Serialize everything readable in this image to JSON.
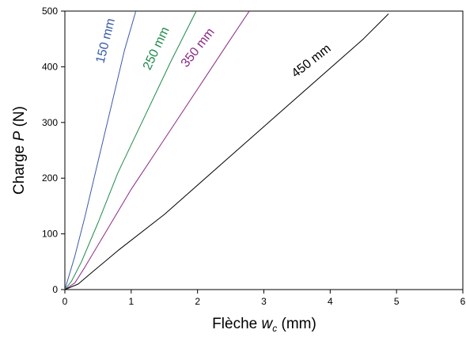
{
  "chart_data": {
    "type": "line",
    "xlabel": {
      "main": "Flèche ",
      "var": "w",
      "sub": "c",
      "unit": " (mm)"
    },
    "ylabel": {
      "main": "Charge ",
      "var": "P",
      "unit": " (N)"
    },
    "xlim": [
      0,
      6
    ],
    "ylim": [
      0,
      500
    ],
    "x_ticks": [
      0,
      1,
      2,
      3,
      4,
      5,
      6
    ],
    "y_ticks": [
      0,
      100,
      200,
      300,
      400,
      500
    ],
    "grid": false,
    "legend": "none",
    "series": [
      {
        "name": "150 mm",
        "color": "#3a5ba8",
        "x": [
          0,
          0.05,
          0.15,
          0.3,
          0.5,
          0.7,
          0.9,
          1.07
        ],
        "y": [
          0,
          20,
          60,
          130,
          230,
          330,
          430,
          500
        ]
      },
      {
        "name": "250 mm",
        "color": "#1f8a4c",
        "x": [
          0,
          0.1,
          0.25,
          0.5,
          0.8,
          1.2,
          1.6,
          1.98
        ],
        "y": [
          0,
          15,
          50,
          120,
          210,
          310,
          410,
          500
        ]
      },
      {
        "name": "350 mm",
        "color": "#8a2a86",
        "x": [
          0,
          0.15,
          0.3,
          0.6,
          1.0,
          1.5,
          2.0,
          2.5,
          2.78
        ],
        "y": [
          0,
          12,
          40,
          100,
          180,
          270,
          360,
          450,
          500
        ]
      },
      {
        "name": "450 mm",
        "color": "#000000",
        "x": [
          0,
          0.2,
          0.4,
          0.8,
          1.5,
          2.5,
          3.5,
          4.5,
          4.88
        ],
        "y": [
          0,
          10,
          30,
          70,
          135,
          240,
          345,
          450,
          495
        ]
      }
    ]
  }
}
